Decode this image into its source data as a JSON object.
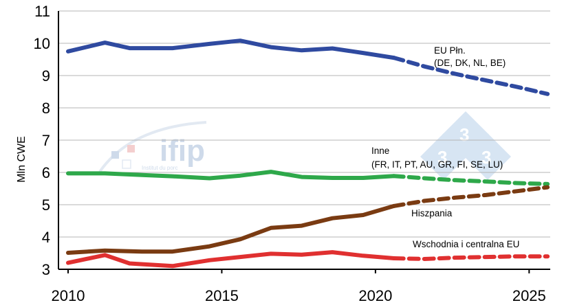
{
  "chart_data": {
    "type": "line",
    "title": "",
    "xlabel": "",
    "ylabel": "Mln CWE",
    "ylim": [
      3,
      11
    ],
    "xlim": [
      2010,
      2026
    ],
    "yticks": [
      3,
      4,
      5,
      6,
      7,
      8,
      9,
      10,
      11
    ],
    "xticks": [
      2010,
      2015,
      2020,
      2025
    ],
    "grid": "horizontal",
    "projection_from": 2020.8,
    "series": [
      {
        "name": "EU Płn.",
        "name_line2": "(DE, DK, NL, BE)",
        "color": "#2f4aa0",
        "x": [
          2010,
          2011.2,
          2012,
          2013.4,
          2014.6,
          2015.6,
          2016.6,
          2017.6,
          2018.6,
          2019.6,
          2020.6,
          2021.6,
          2022.6,
          2023.6,
          2024.6,
          2025.6
        ],
        "y": [
          9.75,
          10.02,
          9.85,
          9.85,
          9.98,
          10.08,
          9.88,
          9.78,
          9.84,
          9.7,
          9.55,
          9.28,
          9.05,
          8.85,
          8.65,
          8.43
        ]
      },
      {
        "name": "Inne",
        "name_line2": "(FR, IT, PT, AU, GR, FI, SE, LU)",
        "color": "#2ea84a",
        "x": [
          2010,
          2011.2,
          2012.4,
          2013.4,
          2014.6,
          2015.6,
          2016.6,
          2017.6,
          2018.6,
          2019.6,
          2020.6,
          2021.6,
          2022.6,
          2023.6,
          2024.6,
          2025.6
        ],
        "y": [
          5.97,
          5.97,
          5.92,
          5.88,
          5.82,
          5.9,
          6.02,
          5.86,
          5.83,
          5.83,
          5.89,
          5.82,
          5.76,
          5.72,
          5.67,
          5.64
        ]
      },
      {
        "name": "Hiszpania",
        "color": "#7a3b12",
        "x": [
          2010,
          2011.2,
          2012.4,
          2013.4,
          2014.6,
          2015.6,
          2016.6,
          2017.6,
          2018.6,
          2019.6,
          2020.6,
          2021.6,
          2022.6,
          2023.6,
          2024.6,
          2025.6
        ],
        "y": [
          3.51,
          3.58,
          3.55,
          3.55,
          3.71,
          3.93,
          4.28,
          4.35,
          4.58,
          4.68,
          4.96,
          5.12,
          5.22,
          5.3,
          5.42,
          5.54
        ]
      },
      {
        "name": "Wschodnia i centralna EU",
        "color": "#e03030",
        "x": [
          2010,
          2011.2,
          2012,
          2013.4,
          2014.6,
          2015.6,
          2016.6,
          2017.6,
          2018.6,
          2019.6,
          2020.6,
          2021.6,
          2022.6,
          2023.6,
          2024.6,
          2025.6
        ],
        "y": [
          3.2,
          3.44,
          3.18,
          3.1,
          3.28,
          3.38,
          3.48,
          3.45,
          3.53,
          3.42,
          3.34,
          3.32,
          3.36,
          3.38,
          3.4,
          3.4
        ]
      }
    ]
  },
  "watermark": {
    "brand": "ifip",
    "tagline": "Institut du porc",
    "badge_digits": [
      "3",
      "3",
      "3"
    ]
  }
}
